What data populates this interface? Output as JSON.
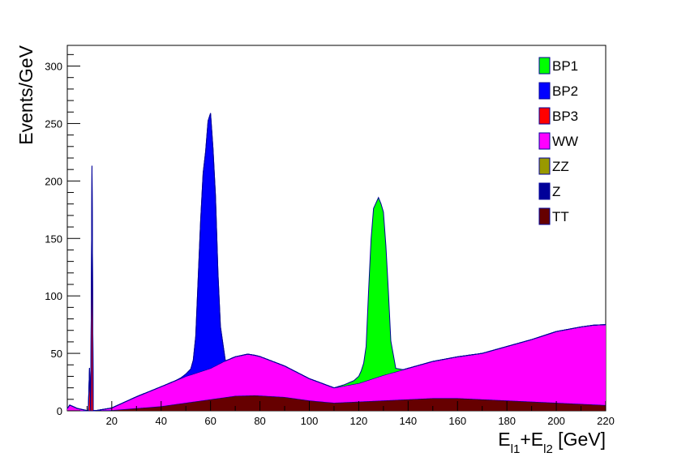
{
  "chart_data": {
    "type": "area",
    "stacked": true,
    "title": "",
    "xlabel": "E_l1+E_l2 [GeV]",
    "xlabel_parts": {
      "base1": "E",
      "sub1": "l1",
      "plus": "+",
      "base2": "E",
      "sub2": "l2",
      "unit": " [GeV]"
    },
    "ylabel": "Events/GeV",
    "xlim": [
      2,
      220
    ],
    "ylim": [
      0,
      318
    ],
    "xticks": [
      20,
      40,
      60,
      80,
      100,
      120,
      140,
      160,
      180,
      200,
      220
    ],
    "yticks": [
      0,
      50,
      100,
      150,
      200,
      250,
      300
    ],
    "legend_position": "top-right",
    "legend": [
      {
        "name": "BP1",
        "color": "#00ff00"
      },
      {
        "name": "BP2",
        "color": "#0000ff"
      },
      {
        "name": "BP3",
        "color": "#ff0000"
      },
      {
        "name": "WW",
        "color": "#ff00ff"
      },
      {
        "name": "ZZ",
        "color": "#999900"
      },
      {
        "name": "Z",
        "color": "#000099"
      },
      {
        "name": "TT",
        "color": "#660000"
      }
    ],
    "series": [
      {
        "name": "TT",
        "color": "#660000",
        "x": [
          2,
          20,
          40,
          60,
          70,
          78,
          90,
          100,
          110,
          130,
          150,
          160,
          180,
          200,
          220
        ],
        "values": [
          0,
          0.5,
          4,
          10,
          13,
          13.5,
          12,
          9,
          7,
          9,
          11,
          11,
          9,
          7,
          5
        ]
      },
      {
        "name": "Z",
        "color": "#000099",
        "x": [
          2,
          20,
          220
        ],
        "values": [
          0,
          0,
          0
        ]
      },
      {
        "name": "ZZ",
        "color": "#999900",
        "x": [
          2,
          20,
          220
        ],
        "values": [
          0,
          0,
          0
        ]
      },
      {
        "name": "WW",
        "color": "#ff00ff",
        "x": [
          2,
          3,
          6,
          10,
          14,
          20,
          30,
          40,
          50,
          60,
          65,
          70,
          75,
          80,
          90,
          100,
          110,
          120,
          130,
          140,
          150,
          160,
          170,
          180,
          190,
          200,
          210,
          215,
          220
        ],
        "values": [
          2,
          5,
          2,
          0,
          0,
          2,
          10,
          17,
          23,
          27,
          31,
          34,
          36,
          34,
          27,
          19,
          13,
          16,
          22,
          27,
          32,
          36,
          40,
          47,
          54,
          62,
          67,
          69,
          70
        ]
      },
      {
        "name": "BP3",
        "color": "#ff0000",
        "x": [
          10.5,
          11,
          11.5,
          12,
          12.5,
          13
        ],
        "values": [
          0,
          37,
          0,
          213,
          0,
          0
        ]
      },
      {
        "name": "BP2",
        "color": "#0000ff",
        "x": [
          46,
          48,
          50,
          52,
          53,
          54,
          55,
          56,
          57,
          58,
          59,
          60,
          61,
          62,
          63,
          64,
          66
        ],
        "values": [
          0,
          0.5,
          2,
          5,
          12,
          32,
          82,
          132,
          172,
          190,
          216,
          222,
          190,
          148,
          80,
          32,
          0
        ]
      },
      {
        "name": "BP1",
        "color": "#00ff00",
        "x": [
          110,
          112,
          114,
          116,
          118,
          120,
          121,
          122,
          123,
          124,
          125,
          126,
          127,
          128,
          129,
          130,
          131,
          132,
          133,
          135,
          138
        ],
        "values": [
          0,
          0.5,
          1,
          2,
          3,
          6,
          10,
          16,
          30,
          78,
          122,
          148,
          152,
          156,
          150,
          142,
          112,
          72,
          28,
          3,
          0
        ]
      }
    ]
  }
}
